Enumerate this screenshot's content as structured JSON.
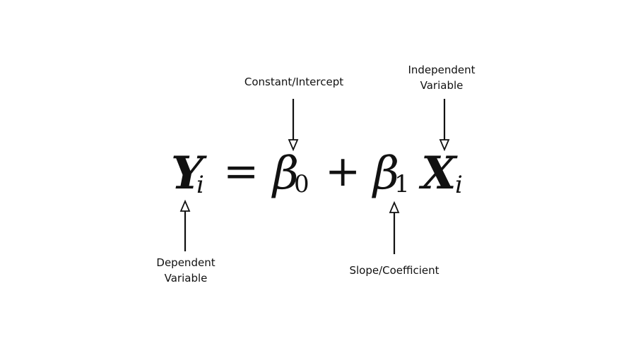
{
  "labels": {
    "constant": "Constant/Intercept",
    "independent_line1": "Independent",
    "independent_line2": "Variable",
    "dependent_line1": "Dependent",
    "dependent_line2": "Variable",
    "slope": "Slope/Coefficient"
  },
  "equation": {
    "y": "Y",
    "y_sub": "i",
    "equals": "=",
    "beta0": "β",
    "beta0_sub": "0",
    "plus": "+",
    "beta1": "β",
    "beta1_sub": "1",
    "x": "X",
    "x_sub": "i"
  },
  "colors": {
    "ink": "#111111",
    "background": "#ffffff"
  }
}
